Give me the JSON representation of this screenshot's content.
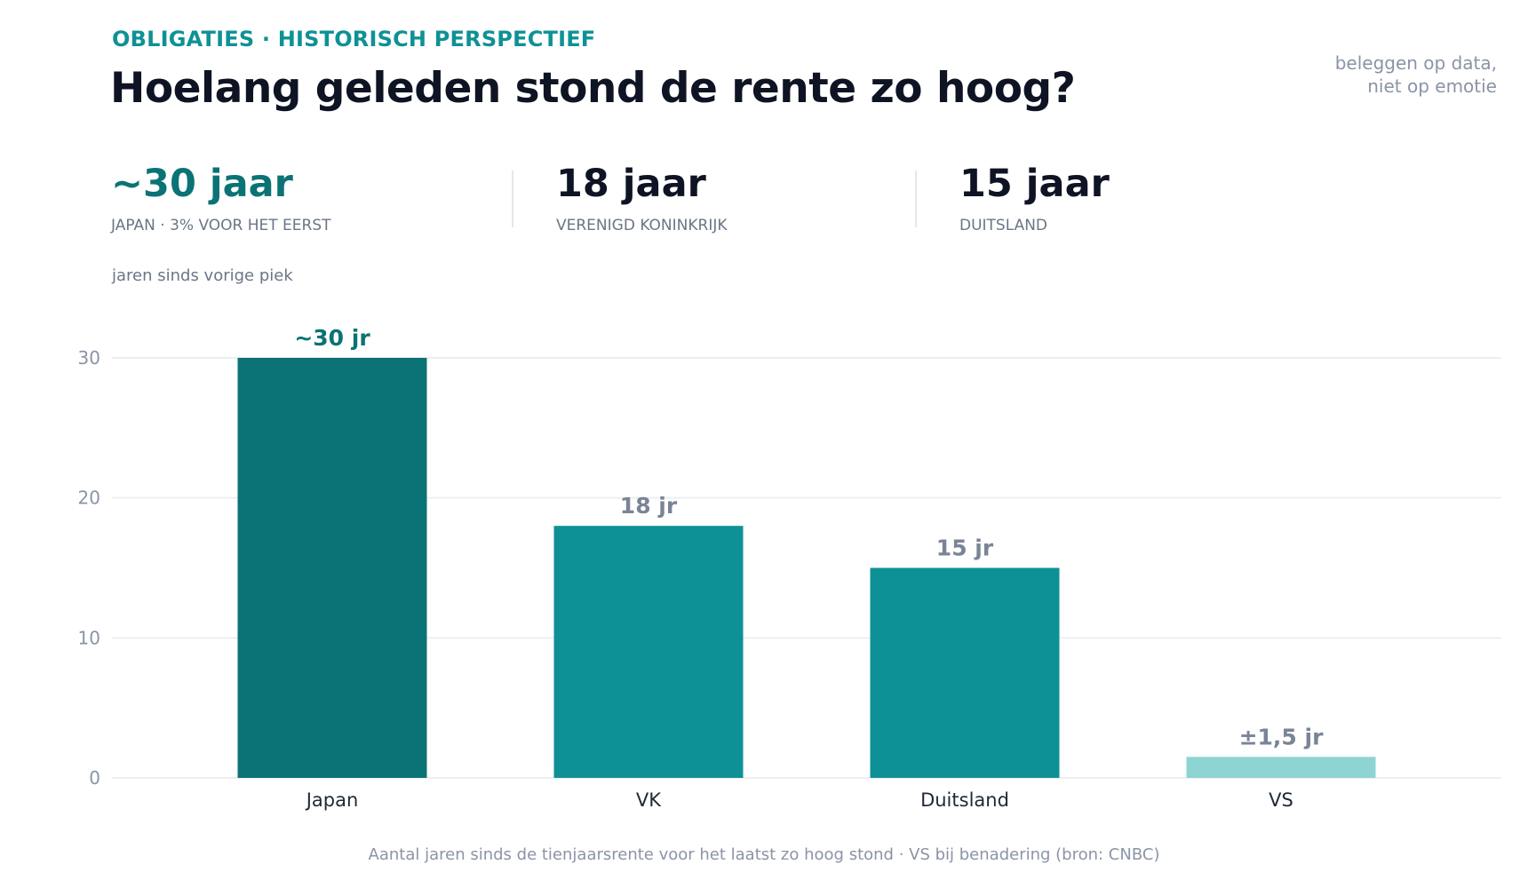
{
  "header": {
    "eyebrow": "OBLIGATIES · HISTORISCH PERSPECTIEF",
    "title": "Hoelang geleden stond de rente zo hoog?",
    "tagline_line1": "beleggen op data,",
    "tagline_line2": "niet op emotie"
  },
  "kpis": [
    {
      "value": "~30 jaar",
      "label": "JAPAN · 3% VOOR HET EERST"
    },
    {
      "value": "18 jaar",
      "label": "VERENIGD KONINKRIJK"
    },
    {
      "value": "15 jaar",
      "label": "DUITSLAND"
    }
  ],
  "chart_data": {
    "type": "bar",
    "ylabel": "jaren sinds vorige piek",
    "categories": [
      "Japan",
      "VK",
      "Duitsland",
      "VS"
    ],
    "values": [
      30,
      18,
      15,
      1.5
    ],
    "data_labels": [
      "~30 jr",
      "18 jr",
      "15 jr",
      "±1,5 jr"
    ],
    "bar_colors": [
      "#0b7375",
      "#0e9196",
      "#0e9196",
      "#8dd4d2"
    ],
    "label_colors": [
      "#0b7375",
      "#7a8496",
      "#7a8496",
      "#7a8496"
    ],
    "ylim": [
      0,
      30
    ],
    "yticks": [
      0,
      10,
      20,
      30
    ],
    "grid": true,
    "footnote": "Aantal jaren sinds de tienjaarsrente voor het laatst zo hoog stond · VS bij benadering (bron: CNBC)"
  }
}
